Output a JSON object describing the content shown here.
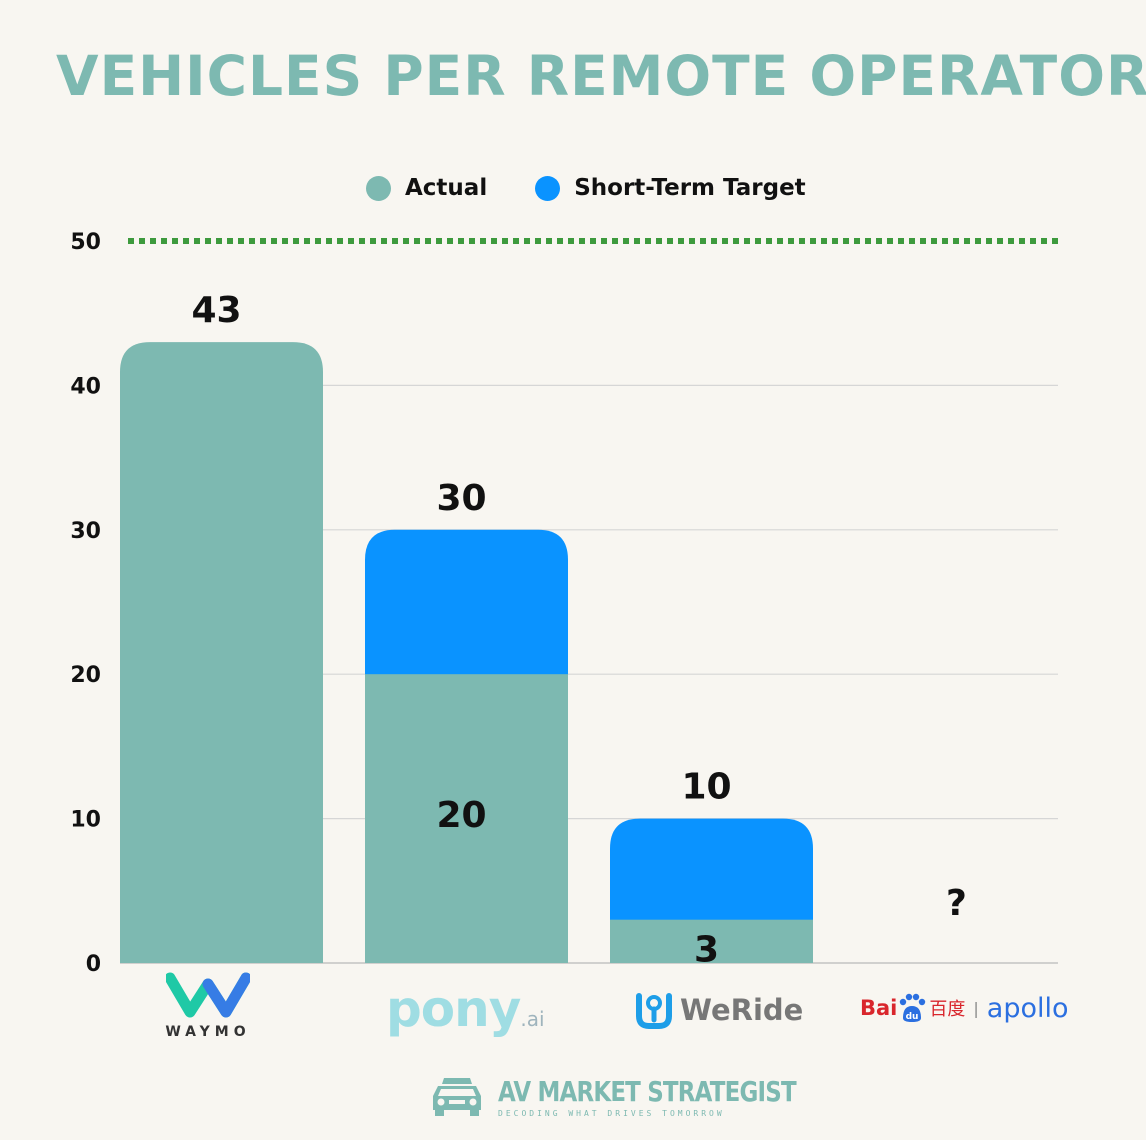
{
  "chart_data": {
    "type": "bar",
    "title": "VEHICLES PER REMOTE OPERATOR",
    "legend": [
      {
        "name": "Actual",
        "color": "#7db9b1"
      },
      {
        "name": "Short-Term Target",
        "color": "#0a93ff"
      }
    ],
    "categories": [
      "Waymo",
      "Pony.ai",
      "WeRide",
      "Baidu Apollo"
    ],
    "series": [
      {
        "name": "Actual",
        "values": [
          43,
          20,
          3,
          null
        ]
      },
      {
        "name": "Short-Term Target",
        "values": [
          null,
          30,
          10,
          null
        ]
      }
    ],
    "bar_labels": {
      "target_labels": [
        "43",
        "30",
        "10",
        "?"
      ],
      "actual_labels": [
        "",
        "20",
        "3",
        ""
      ]
    },
    "yticks": [
      0,
      10,
      20,
      30,
      40,
      50
    ],
    "ylim": [
      0,
      50
    ],
    "reference_line": {
      "value": 50,
      "style": "dotted",
      "color": "#3d9a3d"
    },
    "xlabel": "",
    "ylabel": ""
  },
  "logos": {
    "waymo": "WAYMO",
    "pony_main": "pony",
    "pony_suffix": ".ai",
    "weride": "WeRide",
    "baidu_latin": "Bai",
    "baidu_du": "du",
    "baidu_cn": "百度",
    "apollo": "apollo"
  },
  "footer": {
    "brand": "AV MARKET STRATEGIST",
    "tagline": "DECODING WHAT DRIVES TOMORROW"
  }
}
